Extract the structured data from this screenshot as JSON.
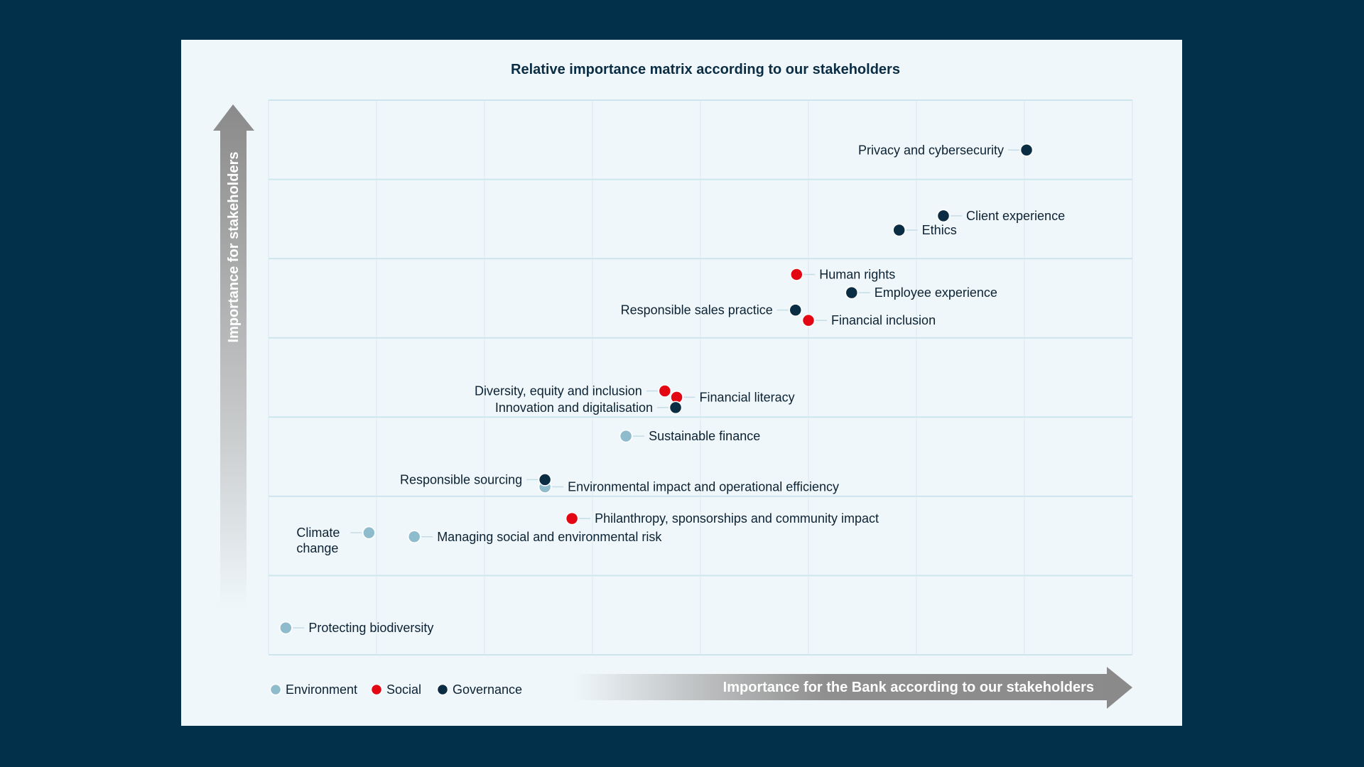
{
  "chart_data": {
    "type": "scatter",
    "title": "Relative importance matrix according to our stakeholders",
    "xlabel": "Importance for the Bank according to our stakeholders",
    "ylabel": "Importance for stakeholders",
    "xlim": [
      0,
      8
    ],
    "ylim": [
      0,
      7
    ],
    "grid": true,
    "legend_position": "bottom-left",
    "categories": [
      {
        "name": "Environment",
        "color": "#8fbccc"
      },
      {
        "name": "Social",
        "color": "#e30613"
      },
      {
        "name": "Governance",
        "color": "#0a2d44"
      }
    ],
    "points": [
      {
        "label": [
          "Privacy and cybersecurity"
        ],
        "category": "Governance",
        "x": 7.02,
        "y": 6.37,
        "side": "left"
      },
      {
        "label": [
          "Client experience"
        ],
        "category": "Governance",
        "x": 6.25,
        "y": 5.54,
        "side": "right"
      },
      {
        "label": [
          "Ethics"
        ],
        "category": "Governance",
        "x": 5.84,
        "y": 5.36,
        "side": "right"
      },
      {
        "label": [
          "Human rights"
        ],
        "category": "Social",
        "x": 4.89,
        "y": 4.8,
        "side": "right"
      },
      {
        "label": [
          "Employee experience"
        ],
        "category": "Governance",
        "x": 5.4,
        "y": 4.57,
        "side": "right"
      },
      {
        "label": [
          "Responsible sales practice"
        ],
        "category": "Governance",
        "x": 4.88,
        "y": 4.35,
        "side": "left"
      },
      {
        "label": [
          "Financial inclusion"
        ],
        "category": "Social",
        "x": 5.0,
        "y": 4.22,
        "side": "right"
      },
      {
        "label": [
          "Diversity, equity and inclusion"
        ],
        "category": "Social",
        "x": 3.67,
        "y": 3.33,
        "side": "left"
      },
      {
        "label": [
          "Financial literacy"
        ],
        "category": "Social",
        "x": 3.78,
        "y": 3.25,
        "side": "right"
      },
      {
        "label": [
          "Innovation and digitalisation"
        ],
        "category": "Governance",
        "x": 3.77,
        "y": 3.12,
        "side": "left"
      },
      {
        "label": [
          "Sustainable finance"
        ],
        "category": "Environment",
        "x": 3.31,
        "y": 2.76,
        "side": "right"
      },
      {
        "label": [
          "Environmental impact and operational efficiency"
        ],
        "category": "Environment",
        "x": 2.56,
        "y": 2.12,
        "side": "right"
      },
      {
        "label": [
          "Responsible sourcing"
        ],
        "category": "Governance",
        "x": 2.56,
        "y": 2.21,
        "side": "left"
      },
      {
        "label": [
          "Philanthropy, sponsorships and community impact"
        ],
        "category": "Social",
        "x": 2.81,
        "y": 1.72,
        "side": "right"
      },
      {
        "label": [
          "Climate",
          "change"
        ],
        "category": "Environment",
        "x": 0.93,
        "y": 1.54,
        "side": "left"
      },
      {
        "label": [
          "Managing social and environmental risk"
        ],
        "category": "Environment",
        "x": 1.35,
        "y": 1.49,
        "side": "right"
      },
      {
        "label": [
          "Protecting biodiversity"
        ],
        "category": "Environment",
        "x": 0.16,
        "y": 0.34,
        "side": "right"
      }
    ]
  }
}
